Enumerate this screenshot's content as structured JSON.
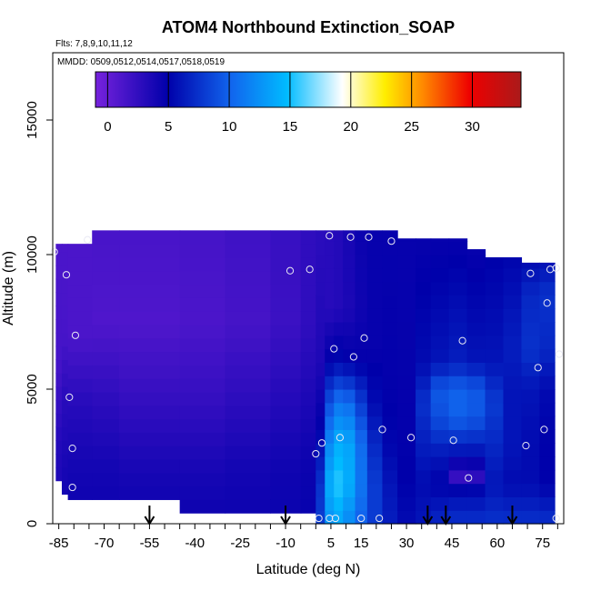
{
  "chart_data": {
    "type": "heatmap",
    "title": "ATOM4 Northbound Extinction_SOAP",
    "flights_text": "Flts: 7,8,9,10,11,12",
    "mmdd_text": "MMDD: 0509,0512,0514,0517,0518,0519",
    "xlabel": "Latitude (deg N)",
    "ylabel": "Altitude (m)",
    "xlim": [
      -87,
      82
    ],
    "ylim": [
      0,
      17500
    ],
    "x_ticks": [
      -85,
      -70,
      -55,
      -40,
      -25,
      -10,
      5,
      15,
      30,
      45,
      60,
      75
    ],
    "x_tick_labels": [
      "-85",
      "-70",
      "-55",
      "-40",
      "-25",
      "-10",
      "5",
      "15",
      "30",
      "45",
      "60",
      "75"
    ],
    "y_ticks": [
      0,
      5000,
      10000,
      15000
    ],
    "y_tick_labels": [
      "0",
      "5000",
      "10000",
      "15000"
    ],
    "colorbar": {
      "range": [
        -1,
        34
      ],
      "ticks": [
        0,
        5,
        10,
        15,
        20,
        25,
        30
      ],
      "tick_labels": [
        "0",
        "5",
        "10",
        "15",
        "20",
        "25",
        "30"
      ],
      "colors": [
        "#7722dd",
        "#0000aa",
        "#1166ee",
        "#00bbff",
        "#ffffff",
        "#ffee00",
        "#ff8800",
        "#ee0000",
        "#aa1a1a"
      ],
      "stops": [
        0,
        0.17,
        0.32,
        0.45,
        0.58,
        0.68,
        0.77,
        0.88,
        1.0
      ]
    },
    "columns": [
      {
        "x0": -86,
        "x1": -84,
        "bottom": 1600,
        "top": 10400,
        "profile": [
          [
            0,
            3.8
          ],
          [
            3000,
            3.2
          ],
          [
            6000,
            1.5
          ],
          [
            10400,
            1.2
          ]
        ]
      },
      {
        "x0": -84,
        "x1": -82,
        "bottom": 1100,
        "top": 10400,
        "profile": [
          [
            0,
            4.2
          ],
          [
            2000,
            3.8
          ],
          [
            4500,
            3.0
          ],
          [
            7000,
            1.4
          ],
          [
            10400,
            1.2
          ]
        ]
      },
      {
        "x0": -82,
        "x1": -74,
        "bottom": 900,
        "top": 10400,
        "profile": [
          [
            0,
            4.4
          ],
          [
            2000,
            4.0
          ],
          [
            4500,
            3.0
          ],
          [
            7000,
            1.2
          ],
          [
            10400,
            1.2
          ]
        ]
      },
      {
        "x0": -74,
        "x1": -65,
        "bottom": 900,
        "top": 10900,
        "profile": [
          [
            0,
            4.4
          ],
          [
            2000,
            4.0
          ],
          [
            4500,
            2.8
          ],
          [
            7500,
            1.0
          ],
          [
            10900,
            1.4
          ]
        ]
      },
      {
        "x0": -65,
        "x1": -45,
        "bottom": 900,
        "top": 10900,
        "profile": [
          [
            0,
            4.4
          ],
          [
            2000,
            3.8
          ],
          [
            4500,
            2.4
          ],
          [
            7500,
            1.0
          ],
          [
            10900,
            1.4
          ]
        ]
      },
      {
        "x0": -45,
        "x1": -30,
        "bottom": 400,
        "top": 10900,
        "profile": [
          [
            0,
            4.4
          ],
          [
            2000,
            3.8
          ],
          [
            4500,
            2.4
          ],
          [
            7500,
            1.2
          ],
          [
            10900,
            1.5
          ]
        ]
      },
      {
        "x0": -30,
        "x1": -15,
        "bottom": 400,
        "top": 10900,
        "profile": [
          [
            0,
            4.4
          ],
          [
            2000,
            4.0
          ],
          [
            4500,
            2.8
          ],
          [
            7500,
            1.5
          ],
          [
            10900,
            1.8
          ]
        ]
      },
      {
        "x0": -15,
        "x1": -5,
        "bottom": 400,
        "top": 10900,
        "profile": [
          [
            0,
            4.4
          ],
          [
            2000,
            4.2
          ],
          [
            4500,
            3.2
          ],
          [
            7500,
            2.0
          ],
          [
            10900,
            2.2
          ]
        ]
      },
      {
        "x0": -5,
        "x1": 0,
        "bottom": 400,
        "top": 10900,
        "profile": [
          [
            0,
            4.6
          ],
          [
            2000,
            4.4
          ],
          [
            4500,
            3.6
          ],
          [
            7500,
            2.6
          ],
          [
            10900,
            2.6
          ]
        ]
      },
      {
        "x0": 0,
        "x1": 3,
        "bottom": 0,
        "top": 10900,
        "profile": [
          [
            0,
            8.0
          ],
          [
            1500,
            7.5
          ],
          [
            3500,
            5.0
          ],
          [
            6000,
            3.5
          ],
          [
            10900,
            2.8
          ]
        ]
      },
      {
        "x0": 3,
        "x1": 6,
        "bottom": 0,
        "top": 10900,
        "profile": [
          [
            0,
            12.5
          ],
          [
            1500,
            14.0
          ],
          [
            3000,
            12.0
          ],
          [
            4500,
            9.0
          ],
          [
            6000,
            5.0
          ],
          [
            8000,
            3.0
          ],
          [
            10900,
            3.0
          ]
        ]
      },
      {
        "x0": 6,
        "x1": 9,
        "bottom": 0,
        "top": 10900,
        "profile": [
          [
            0,
            13.5
          ],
          [
            1500,
            15.5
          ],
          [
            3000,
            14.0
          ],
          [
            4500,
            11.0
          ],
          [
            6000,
            5.5
          ],
          [
            8000,
            3.2
          ],
          [
            10900,
            3.2
          ]
        ]
      },
      {
        "x0": 9,
        "x1": 13,
        "bottom": 0,
        "top": 10900,
        "profile": [
          [
            0,
            12.0
          ],
          [
            1500,
            14.0
          ],
          [
            3000,
            13.5
          ],
          [
            4500,
            10.5
          ],
          [
            6000,
            5.0
          ],
          [
            8000,
            3.6
          ],
          [
            10900,
            3.8
          ]
        ]
      },
      {
        "x0": 13,
        "x1": 17,
        "bottom": 0,
        "top": 10900,
        "profile": [
          [
            0,
            10.0
          ],
          [
            1500,
            11.0
          ],
          [
            3000,
            10.5
          ],
          [
            4500,
            8.0
          ],
          [
            6000,
            4.8
          ],
          [
            8000,
            4.2
          ],
          [
            10900,
            4.4
          ]
        ]
      },
      {
        "x0": 17,
        "x1": 22,
        "bottom": 0,
        "top": 10900,
        "profile": [
          [
            0,
            8.0
          ],
          [
            1500,
            8.0
          ],
          [
            3000,
            7.0
          ],
          [
            4500,
            5.5
          ],
          [
            6500,
            4.6
          ],
          [
            10900,
            4.6
          ]
        ]
      },
      {
        "x0": 22,
        "x1": 27,
        "bottom": 0,
        "top": 10900,
        "profile": [
          [
            0,
            6.5
          ],
          [
            1500,
            6.0
          ],
          [
            3000,
            5.2
          ],
          [
            5000,
            4.8
          ],
          [
            10900,
            4.6
          ]
        ]
      },
      {
        "x0": 27,
        "x1": 33,
        "bottom": 0,
        "top": 10600,
        "profile": [
          [
            0,
            5.5
          ],
          [
            1500,
            5.0
          ],
          [
            3000,
            4.8
          ],
          [
            5000,
            4.7
          ],
          [
            10600,
            4.6
          ]
        ]
      },
      {
        "x0": 33,
        "x1": 38,
        "bottom": 0,
        "top": 10600,
        "profile": [
          [
            0,
            6.0
          ],
          [
            1500,
            5.5
          ],
          [
            3000,
            6.5
          ],
          [
            4500,
            7.5
          ],
          [
            6000,
            5.5
          ],
          [
            10600,
            4.6
          ]
        ]
      },
      {
        "x0": 38,
        "x1": 44,
        "bottom": 0,
        "top": 10600,
        "profile": [
          [
            0,
            7.0
          ],
          [
            1500,
            5.0
          ],
          [
            2500,
            6.0
          ],
          [
            4000,
            9.0
          ],
          [
            5000,
            9.5
          ],
          [
            6000,
            6.0
          ],
          [
            10600,
            4.6
          ]
        ]
      },
      {
        "x0": 44,
        "x1": 50,
        "bottom": 0,
        "top": 10600,
        "profile": [
          [
            0,
            7.5
          ],
          [
            1200,
            5.5
          ],
          [
            1800,
            2.0
          ],
          [
            2500,
            5.5
          ],
          [
            4000,
            10.0
          ],
          [
            5000,
            10.0
          ],
          [
            6000,
            6.5
          ],
          [
            10600,
            4.6
          ]
        ]
      },
      {
        "x0": 50,
        "x1": 56,
        "bottom": 0,
        "top": 10200,
        "profile": [
          [
            0,
            7.5
          ],
          [
            1200,
            5.5
          ],
          [
            1800,
            2.5
          ],
          [
            2500,
            5.5
          ],
          [
            4000,
            9.5
          ],
          [
            5000,
            9.5
          ],
          [
            6000,
            6.0
          ],
          [
            10200,
            4.6
          ]
        ]
      },
      {
        "x0": 56,
        "x1": 62,
        "bottom": 0,
        "top": 9900,
        "profile": [
          [
            0,
            7.5
          ],
          [
            1500,
            6.0
          ],
          [
            3000,
            7.0
          ],
          [
            4500,
            8.0
          ],
          [
            6000,
            6.0
          ],
          [
            9900,
            5.0
          ]
        ]
      },
      {
        "x0": 62,
        "x1": 68,
        "bottom": 0,
        "top": 9900,
        "profile": [
          [
            0,
            7.5
          ],
          [
            1500,
            5.5
          ],
          [
            3000,
            6.0
          ],
          [
            5000,
            6.0
          ],
          [
            6500,
            6.5
          ],
          [
            8000,
            6.0
          ],
          [
            9900,
            5.2
          ]
        ]
      },
      {
        "x0": 68,
        "x1": 74,
        "bottom": 0,
        "top": 9700,
        "profile": [
          [
            0,
            7.5
          ],
          [
            1500,
            5.5
          ],
          [
            3000,
            5.5
          ],
          [
            5000,
            6.0
          ],
          [
            6500,
            7.5
          ],
          [
            8500,
            7.0
          ],
          [
            9700,
            5.5
          ]
        ]
      },
      {
        "x0": 74,
        "x1": 79,
        "bottom": 0,
        "top": 9700,
        "profile": [
          [
            0,
            7.5
          ],
          [
            1500,
            5.0
          ],
          [
            3000,
            5.0
          ],
          [
            5000,
            5.5
          ],
          [
            6500,
            7.0
          ],
          [
            8500,
            7.5
          ],
          [
            9700,
            5.8
          ]
        ]
      }
    ],
    "points": [
      {
        "x": -86.5,
        "y": 10100
      },
      {
        "x": -82.5,
        "y": 9250
      },
      {
        "x": -81.5,
        "y": 4700
      },
      {
        "x": -80.5,
        "y": 2800
      },
      {
        "x": -80.5,
        "y": 1350
      },
      {
        "x": -79.5,
        "y": 7000
      },
      {
        "x": -75.5,
        "y": 10550
      },
      {
        "x": -8.5,
        "y": 9400
      },
      {
        "x": -2,
        "y": 9450
      },
      {
        "x": 0,
        "y": 2600
      },
      {
        "x": 1,
        "y": 200
      },
      {
        "x": 2,
        "y": 3000
      },
      {
        "x": 4.5,
        "y": 10700
      },
      {
        "x": 4.5,
        "y": 200
      },
      {
        "x": 6,
        "y": 6500
      },
      {
        "x": 6.5,
        "y": 200
      },
      {
        "x": 8,
        "y": 3200
      },
      {
        "x": 11.5,
        "y": 10650
      },
      {
        "x": 12.5,
        "y": 6200
      },
      {
        "x": 15,
        "y": 200
      },
      {
        "x": 16,
        "y": 6900
      },
      {
        "x": 17.5,
        "y": 10650
      },
      {
        "x": 21,
        "y": 200
      },
      {
        "x": 22,
        "y": 3500
      },
      {
        "x": 25,
        "y": 10500
      },
      {
        "x": 31.5,
        "y": 3200
      },
      {
        "x": 45.5,
        "y": 3100
      },
      {
        "x": 48.5,
        "y": 6800
      },
      {
        "x": 50.5,
        "y": 1700
      },
      {
        "x": 69.5,
        "y": 2900
      },
      {
        "x": 71,
        "y": 9300
      },
      {
        "x": 73.5,
        "y": 5800
      },
      {
        "x": 75.5,
        "y": 3500
      },
      {
        "x": 76.5,
        "y": 8200
      },
      {
        "x": 77.5,
        "y": 9450
      },
      {
        "x": 79.5,
        "y": 9500
      },
      {
        "x": 79.5,
        "y": 200
      },
      {
        "x": 80.5,
        "y": 6300
      }
    ],
    "arrows": [
      -55,
      -10,
      37,
      43,
      65
    ]
  }
}
